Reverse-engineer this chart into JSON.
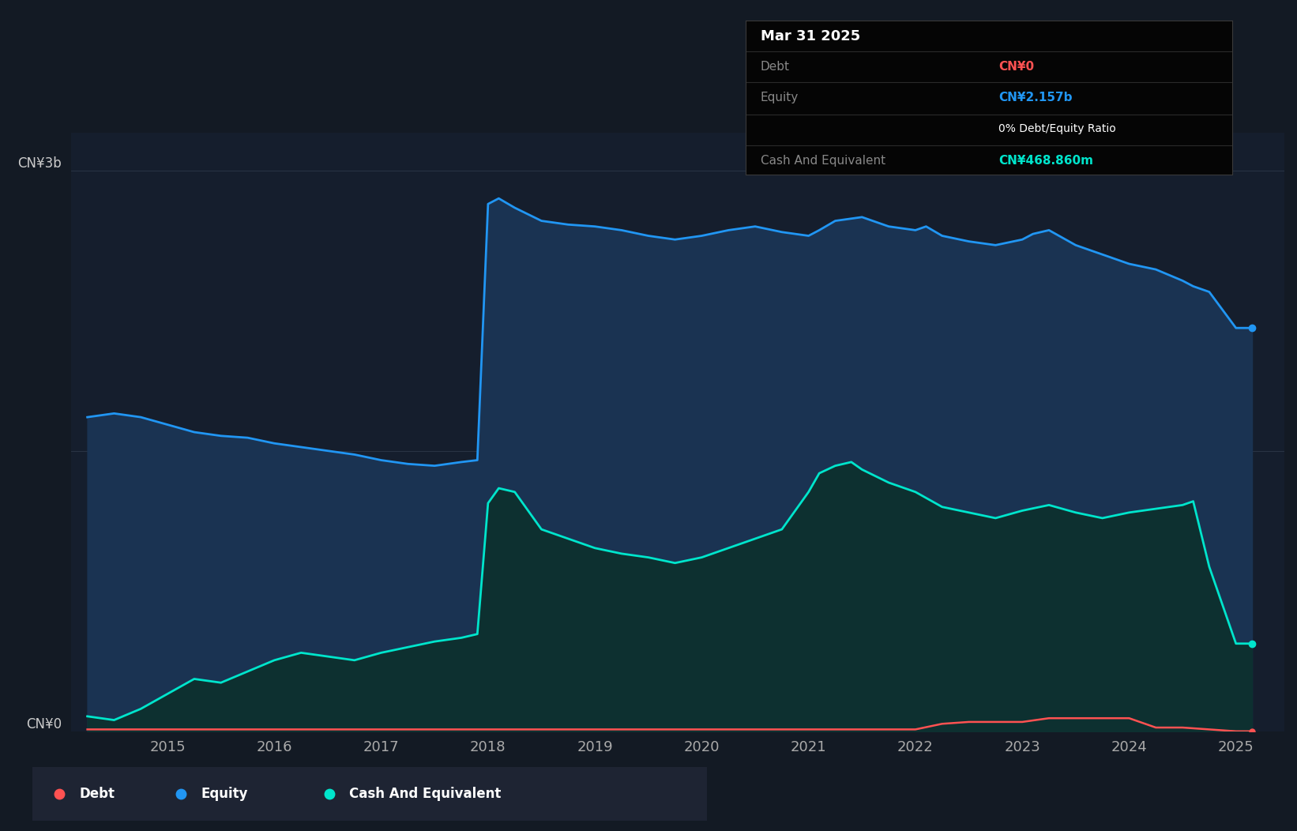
{
  "background_color": "#131a24",
  "plot_bg_color": "#151e2d",
  "ylabel_top": "CN¥3b",
  "ylabel_bottom": "CN¥0",
  "grid_color": "#2a3545",
  "equity_color": "#2196f3",
  "cash_color": "#00e5cc",
  "debt_color": "#ff5252",
  "equity_fill": "#1a3352",
  "cash_fill": "#0d3030",
  "tooltip_bg": "#050505",
  "tooltip_title": "Mar 31 2025",
  "tooltip_debt_label": "Debt",
  "tooltip_debt_value": "CN¥0",
  "tooltip_equity_label": "Equity",
  "tooltip_equity_value": "CN¥2.157b",
  "tooltip_ratio": "0% Debt/Equity Ratio",
  "tooltip_cash_label": "Cash And Equivalent",
  "tooltip_cash_value": "CN¥468.860m",
  "legend_items": [
    "Debt",
    "Equity",
    "Cash And Equivalent"
  ],
  "equity_data": {
    "years": [
      2014.25,
      2014.5,
      2014.75,
      2015.0,
      2015.25,
      2015.5,
      2015.75,
      2016.0,
      2016.25,
      2016.5,
      2016.75,
      2017.0,
      2017.25,
      2017.5,
      2017.75,
      2017.9,
      2018.0,
      2018.1,
      2018.25,
      2018.5,
      2018.75,
      2019.0,
      2019.25,
      2019.5,
      2019.75,
      2020.0,
      2020.25,
      2020.5,
      2020.75,
      2021.0,
      2021.1,
      2021.25,
      2021.5,
      2021.75,
      2022.0,
      2022.1,
      2022.25,
      2022.5,
      2022.75,
      2023.0,
      2023.1,
      2023.25,
      2023.5,
      2023.75,
      2024.0,
      2024.25,
      2024.5,
      2024.6,
      2024.75,
      2025.0,
      2025.15
    ],
    "values": [
      1.68,
      1.7,
      1.68,
      1.64,
      1.6,
      1.58,
      1.57,
      1.54,
      1.52,
      1.5,
      1.48,
      1.45,
      1.43,
      1.42,
      1.44,
      1.45,
      2.82,
      2.85,
      2.8,
      2.73,
      2.71,
      2.7,
      2.68,
      2.65,
      2.63,
      2.65,
      2.68,
      2.7,
      2.67,
      2.65,
      2.68,
      2.73,
      2.75,
      2.7,
      2.68,
      2.7,
      2.65,
      2.62,
      2.6,
      2.63,
      2.66,
      2.68,
      2.6,
      2.55,
      2.5,
      2.47,
      2.41,
      2.38,
      2.35,
      2.157,
      2.157
    ]
  },
  "cash_data": {
    "years": [
      2014.25,
      2014.5,
      2014.75,
      2015.0,
      2015.25,
      2015.5,
      2015.75,
      2016.0,
      2016.25,
      2016.5,
      2016.75,
      2017.0,
      2017.25,
      2017.5,
      2017.75,
      2017.9,
      2018.0,
      2018.1,
      2018.25,
      2018.5,
      2018.75,
      2019.0,
      2019.25,
      2019.5,
      2019.75,
      2020.0,
      2020.25,
      2020.5,
      2020.75,
      2021.0,
      2021.1,
      2021.25,
      2021.4,
      2021.5,
      2021.75,
      2022.0,
      2022.25,
      2022.5,
      2022.75,
      2023.0,
      2023.25,
      2023.5,
      2023.75,
      2024.0,
      2024.25,
      2024.5,
      2024.6,
      2024.75,
      2025.0,
      2025.15
    ],
    "values": [
      0.08,
      0.06,
      0.12,
      0.2,
      0.28,
      0.26,
      0.32,
      0.38,
      0.42,
      0.4,
      0.38,
      0.42,
      0.45,
      0.48,
      0.5,
      0.52,
      1.22,
      1.3,
      1.28,
      1.08,
      1.03,
      0.98,
      0.95,
      0.93,
      0.9,
      0.93,
      0.98,
      1.03,
      1.08,
      1.28,
      1.38,
      1.42,
      1.44,
      1.4,
      1.33,
      1.28,
      1.2,
      1.17,
      1.14,
      1.18,
      1.21,
      1.17,
      1.14,
      1.17,
      1.19,
      1.21,
      1.23,
      0.88,
      0.469,
      0.469
    ]
  },
  "debt_data": {
    "years": [
      2014.25,
      2014.5,
      2015.0,
      2016.0,
      2017.0,
      2018.0,
      2019.0,
      2020.0,
      2021.0,
      2022.0,
      2022.25,
      2022.5,
      2022.75,
      2023.0,
      2023.25,
      2023.5,
      2023.75,
      2024.0,
      2024.25,
      2024.5,
      2024.75,
      2025.0,
      2025.15
    ],
    "values": [
      0.01,
      0.01,
      0.01,
      0.01,
      0.01,
      0.01,
      0.01,
      0.01,
      0.01,
      0.01,
      0.04,
      0.05,
      0.05,
      0.05,
      0.07,
      0.07,
      0.07,
      0.07,
      0.02,
      0.02,
      0.01,
      0.0,
      0.0
    ]
  },
  "ylim": [
    0,
    3.2
  ],
  "xlim": [
    2014.1,
    2025.45
  ],
  "yticks_grid": [
    1.5,
    3.0
  ],
  "xtick_years": [
    2015,
    2016,
    2017,
    2018,
    2019,
    2020,
    2021,
    2022,
    2023,
    2024,
    2025
  ]
}
